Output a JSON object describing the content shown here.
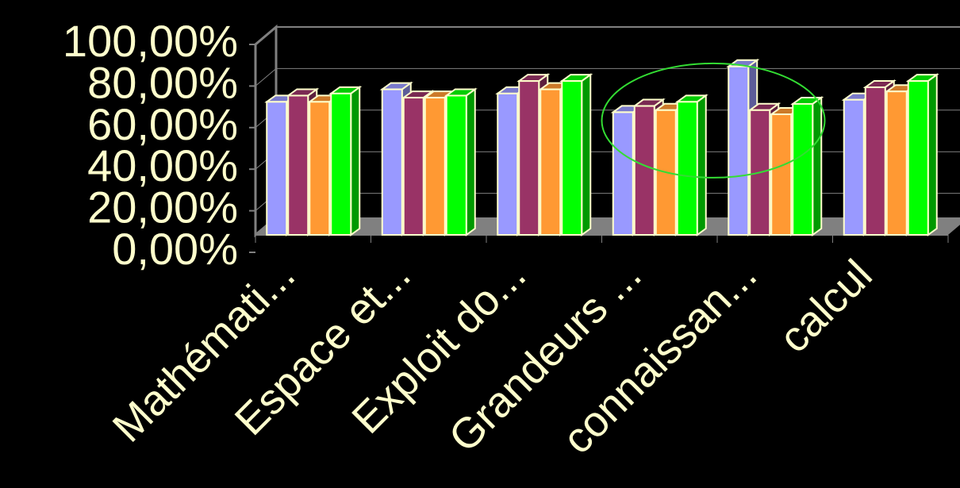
{
  "chart_data": {
    "type": "bar",
    "three_d": true,
    "categories": [
      "Mathémati...",
      "Espace et...",
      "Exploit do...",
      "Grandeurs ...",
      "connaissan...",
      "calcul"
    ],
    "series": [
      {
        "color": "#9999ff",
        "values": [
          0.64,
          0.7,
          0.68,
          0.59,
          0.81,
          0.65
        ]
      },
      {
        "color": "#993366",
        "values": [
          0.67,
          0.66,
          0.74,
          0.62,
          0.6,
          0.71
        ]
      },
      {
        "color": "#ff9933",
        "values": [
          0.64,
          0.66,
          0.7,
          0.6,
          0.58,
          0.69
        ]
      },
      {
        "color": "#00ff00",
        "values": [
          0.68,
          0.67,
          0.74,
          0.64,
          0.63,
          0.74
        ]
      }
    ],
    "yticks": [
      {
        "value": 0,
        "label": "0,00%"
      },
      {
        "value": 0.2,
        "label": "20,00%"
      },
      {
        "value": 0.4,
        "label": "40,00%"
      },
      {
        "value": 0.6,
        "label": "60,00%"
      },
      {
        "value": 0.8,
        "label": "80,00%"
      },
      {
        "value": 1.0,
        "label": "100,00%"
      }
    ],
    "ylim": [
      0,
      1
    ],
    "grid": true,
    "legend": "none",
    "highlight": {
      "shape": "ellipse",
      "color": "#33dd33",
      "categories": [
        "Grandeurs ...",
        "connaissan..."
      ]
    },
    "colors": {
      "background": "#000000",
      "text": "#ffffcc",
      "bar_edge": "#ffffcc",
      "floor": "#808080",
      "wall_edge": "#808080",
      "grid": "#808080"
    }
  }
}
